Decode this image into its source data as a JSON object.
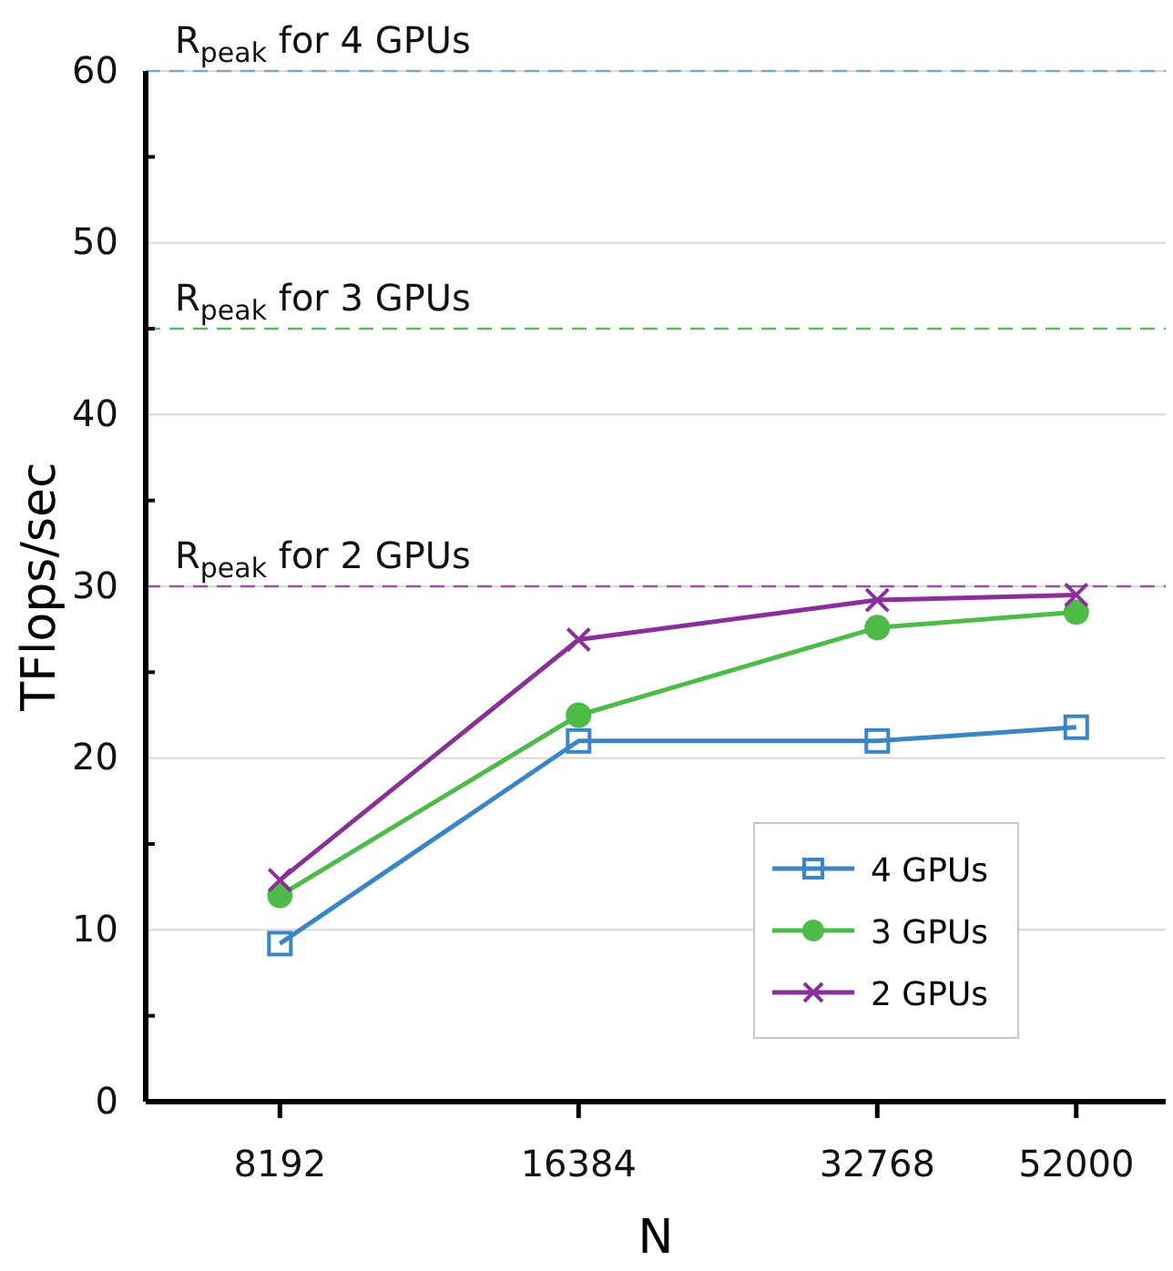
{
  "chart_data": {
    "type": "line",
    "xlabel": "N",
    "ylabel": "TFlops/sec",
    "x": [
      8192,
      16384,
      32768,
      52000
    ],
    "log": "x",
    "xlim": [
      6000,
      64000
    ],
    "xticks": [
      8192,
      16384,
      32768,
      52000
    ],
    "ylim": [
      0,
      60
    ],
    "yticks": [
      0,
      {
        "value": 5,
        "label": null
      },
      10,
      {
        "value": 15,
        "label": null
      },
      20,
      {
        "value": 25,
        "label": null
      },
      30,
      {
        "value": 35,
        "label": null
      },
      40,
      {
        "value": 45,
        "label": null
      },
      50,
      {
        "value": 55,
        "label": null
      },
      60
    ],
    "grid": "y",
    "legend": "bottom right",
    "series": [
      {
        "name": "4 GPUs",
        "color": "#3a84c8",
        "marker": "square",
        "values": [
          9.2,
          21.0,
          21.0,
          21.8
        ]
      },
      {
        "name": "3 GPUs",
        "color": "#4cbb47",
        "marker": "circle",
        "values": [
          12.0,
          22.5,
          27.6,
          28.5
        ]
      },
      {
        "name": "2 GPUs",
        "color": "#8a2f9a",
        "marker": "cross",
        "values": [
          12.9,
          26.9,
          29.2,
          29.5
        ]
      }
    ],
    "ref_lines": [
      {
        "axis": "y",
        "value": 60,
        "label": "R$_{peak}$ for 4 GPUs",
        "color": "#7fa7c0",
        "line_style": "dashed"
      },
      {
        "axis": "y",
        "value": 45,
        "label": "R$_{peak}$ for 3 GPUs",
        "color": "#5cb85c",
        "line_style": "dashed"
      },
      {
        "axis": "y",
        "value": 30,
        "label": "R$_{peak}$ for 2 GPUs",
        "color": "#9b4fa8",
        "line_style": "dashed"
      }
    ]
  }
}
